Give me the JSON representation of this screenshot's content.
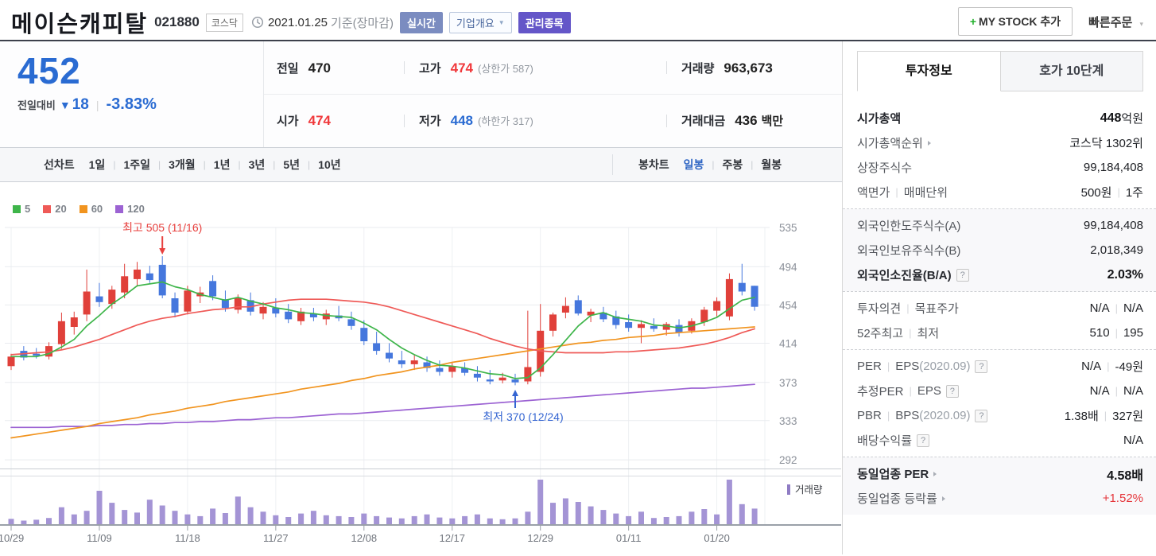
{
  "header": {
    "title": "메이슨캐피탈",
    "code": "021880",
    "market": "코스닥",
    "date": "2021.01.25",
    "date_note": "기준(장마감)",
    "badge_realtime": "실시간",
    "badge_overview": "기업개요",
    "badge_managed": "관리종목",
    "mystock_plus": "+",
    "mystock_label": "MY STOCK 추가",
    "quick_order": "빠른주문"
  },
  "price": {
    "current": "452",
    "change_label": "전일대비",
    "down_arrow": "▼",
    "change": "18",
    "percent": "-3.83%",
    "down_color": "#2a6bd2"
  },
  "quote": {
    "rows": [
      {
        "cells": [
          {
            "label": "전일",
            "value": "470",
            "vcls": "dark"
          },
          {
            "label": "고가",
            "value": "474",
            "vcls": "red",
            "extra": "(상한가 587)"
          },
          {
            "label": "거래량",
            "value": "963,673",
            "vcls": "dark"
          }
        ]
      },
      {
        "cells": [
          {
            "label": "시가",
            "value": "474",
            "vcls": "red"
          },
          {
            "label": "저가",
            "value": "448",
            "vcls": "blue",
            "extra": "(하한가 317)"
          },
          {
            "label": "거래대금",
            "value": "436",
            "vcls": "dark",
            "unit": "백만"
          }
        ]
      }
    ]
  },
  "chart_tabs": {
    "line_label": "선차트",
    "line_items": [
      "1일",
      "1주일",
      "3개월",
      "1년",
      "3년",
      "5년",
      "10년"
    ],
    "candle_label": "봉차트",
    "candle_items": [
      "일봉",
      "주봉",
      "월봉"
    ],
    "selected": "일봉"
  },
  "info_panel": {
    "tabs": [
      "투자정보",
      "호가 10단계"
    ],
    "selected_tab": "투자정보",
    "sections": [
      {
        "gray": false,
        "rows": [
          {
            "label": [
              [
                "시가총액",
                "bl"
              ]
            ],
            "value": [
              [
                "448",
                "bv"
              ],
              [
                "억원",
                ""
              ]
            ]
          },
          {
            "label": [
              [
                "시가총액순위",
                ""
              ],
              [
                "",
                "arw"
              ]
            ],
            "value": [
              [
                "코스닥 1302위",
                ""
              ]
            ]
          },
          {
            "label": [
              [
                "상장주식수",
                ""
              ]
            ],
            "value": [
              [
                "99,184,408",
                ""
              ]
            ]
          },
          {
            "label": [
              [
                "액면가",
                ""
              ],
              [
                "",
                "sep"
              ],
              [
                "매매단위",
                ""
              ]
            ],
            "value": [
              [
                "500원",
                ""
              ],
              [
                "",
                "sep"
              ],
              [
                "1주",
                ""
              ]
            ]
          }
        ]
      },
      {
        "gray": true,
        "rows": [
          {
            "label": [
              [
                "외국인한도주식수(A)",
                ""
              ]
            ],
            "value": [
              [
                "99,184,408",
                ""
              ]
            ]
          },
          {
            "label": [
              [
                "외국인보유주식수(B)",
                ""
              ]
            ],
            "value": [
              [
                "2,018,349",
                ""
              ]
            ]
          },
          {
            "label": [
              [
                "외국인소진율(B/A)",
                "bl"
              ],
              [
                "",
                "help"
              ]
            ],
            "value": [
              [
                "2.03%",
                "bv"
              ]
            ]
          }
        ]
      },
      {
        "gray": false,
        "rows": [
          {
            "label": [
              [
                "투자의견",
                ""
              ],
              [
                "",
                "sep"
              ],
              [
                "목표주가",
                ""
              ]
            ],
            "value": [
              [
                "N/A",
                ""
              ],
              [
                "",
                "sep"
              ],
              [
                "N/A",
                ""
              ]
            ]
          },
          {
            "label": [
              [
                "52주최고",
                ""
              ],
              [
                "",
                "sep"
              ],
              [
                "최저",
                ""
              ]
            ],
            "value": [
              [
                "510",
                ""
              ],
              [
                "",
                "sep"
              ],
              [
                "195",
                ""
              ]
            ]
          }
        ]
      },
      {
        "gray": false,
        "rows": [
          {
            "label": [
              [
                "PER",
                ""
              ],
              [
                "",
                "sep"
              ],
              [
                "EPS",
                ""
              ],
              [
                "(2020.09)",
                "g"
              ],
              [
                "",
                "help"
              ]
            ],
            "value": [
              [
                "N/A",
                ""
              ],
              [
                "",
                "sep"
              ],
              [
                "-49원",
                ""
              ]
            ]
          },
          {
            "label": [
              [
                "추정PER",
                ""
              ],
              [
                "",
                "sep"
              ],
              [
                "EPS",
                ""
              ],
              [
                "",
                "help"
              ]
            ],
            "value": [
              [
                "N/A",
                ""
              ],
              [
                "",
                "sep"
              ],
              [
                "N/A",
                ""
              ]
            ]
          },
          {
            "label": [
              [
                "PBR",
                ""
              ],
              [
                "",
                "sep"
              ],
              [
                "BPS",
                ""
              ],
              [
                "(2020.09)",
                "g"
              ],
              [
                "",
                "help"
              ]
            ],
            "value": [
              [
                "1.38배",
                ""
              ],
              [
                "",
                "sep"
              ],
              [
                "327원",
                ""
              ]
            ]
          },
          {
            "label": [
              [
                "배당수익률",
                ""
              ],
              [
                "",
                "help"
              ]
            ],
            "value": [
              [
                "N/A",
                ""
              ]
            ]
          }
        ]
      },
      {
        "gray": true,
        "rows": [
          {
            "label": [
              [
                "동일업종 PER",
                "bl"
              ],
              [
                "",
                "arw"
              ]
            ],
            "value": [
              [
                "4.58배",
                "bv"
              ]
            ]
          },
          {
            "label": [
              [
                "동일업종 등락률",
                ""
              ],
              [
                "",
                "arw"
              ]
            ],
            "value": [
              [
                "+1.52%",
                "red"
              ]
            ]
          }
        ]
      }
    ]
  },
  "chart_data": {
    "type": "candlestick",
    "title": "메이슨캐피탈 일봉 차트",
    "y_ticks": [
      535,
      494,
      454,
      414,
      373,
      333,
      292
    ],
    "ylim": [
      292,
      535
    ],
    "x_labels": [
      "10/29",
      "11/09",
      "11/18",
      "11/27",
      "12/08",
      "12/17",
      "12/29",
      "01/11",
      "01/20"
    ],
    "x_label_indices": [
      0,
      7,
      14,
      21,
      28,
      35,
      42,
      49,
      56
    ],
    "ma_legend": [
      {
        "period": "5",
        "color": "#3eb54a"
      },
      {
        "period": "20",
        "color": "#ef5a57"
      },
      {
        "period": "60",
        "color": "#f1941f"
      },
      {
        "period": "120",
        "color": "#9c63d3"
      }
    ],
    "volume_legend": "거래량",
    "up_color": "#e0403a",
    "down_color": "#4577dd",
    "volume_color": "#a494d5",
    "annotations": {
      "high": {
        "text": "최고 505 (11/16)",
        "index": 12,
        "value": 505,
        "color": "#e8403e"
      },
      "low": {
        "text": "최저 370 (12/24)",
        "index": 40,
        "value": 370,
        "color": "#3465d2"
      }
    },
    "candles": [
      [
        "10/29",
        390,
        403,
        386,
        400,
        12
      ],
      [
        "10/30",
        406,
        411,
        396,
        399,
        8
      ],
      [
        "11/02",
        403,
        409,
        398,
        401,
        10
      ],
      [
        "11/03",
        400,
        415,
        397,
        411,
        14
      ],
      [
        "11/04",
        413,
        446,
        408,
        437,
        38
      ],
      [
        "11/05",
        431,
        447,
        423,
        441,
        22
      ],
      [
        "11/06",
        444,
        491,
        437,
        468,
        30
      ],
      [
        "11/09",
        463,
        477,
        452,
        457,
        75
      ],
      [
        "11/10",
        455,
        474,
        450,
        470,
        48
      ],
      [
        "11/11",
        467,
        497,
        461,
        484,
        32
      ],
      [
        "11/12",
        481,
        499,
        473,
        491,
        26
      ],
      [
        "11/13",
        487,
        495,
        477,
        480,
        55
      ],
      [
        "11/16",
        496,
        505,
        461,
        464,
        42
      ],
      [
        "11/17",
        461,
        467,
        441,
        446,
        30
      ],
      [
        "11/18",
        447,
        474,
        444,
        469,
        22
      ],
      [
        "11/19",
        463,
        473,
        456,
        467,
        18
      ],
      [
        "11/20",
        479,
        485,
        459,
        463,
        35
      ],
      [
        "11/23",
        460,
        469,
        447,
        451,
        25
      ],
      [
        "11/24",
        449,
        465,
        445,
        461,
        62
      ],
      [
        "11/25",
        459,
        467,
        443,
        447,
        38
      ],
      [
        "11/26",
        445,
        457,
        439,
        452,
        28
      ],
      [
        "11/27",
        451,
        461,
        441,
        445,
        20
      ],
      [
        "11/30",
        447,
        455,
        435,
        439,
        16
      ],
      [
        "12/01",
        437,
        451,
        433,
        447,
        24
      ],
      [
        "12/02",
        445,
        451,
        437,
        441,
        30
      ],
      [
        "12/03",
        439,
        449,
        433,
        445,
        20
      ],
      [
        "12/04",
        443,
        453,
        437,
        440,
        18
      ],
      [
        "12/07",
        439,
        447,
        428,
        432,
        16
      ],
      [
        "12/08",
        430,
        438,
        412,
        416,
        24
      ],
      [
        "12/09",
        414,
        426,
        402,
        406,
        18
      ],
      [
        "12/10",
        404,
        414,
        394,
        398,
        15
      ],
      [
        "12/11",
        396,
        406,
        388,
        392,
        13
      ],
      [
        "12/14",
        392,
        402,
        386,
        396,
        18
      ],
      [
        "12/15",
        394,
        400,
        384,
        388,
        22
      ],
      [
        "12/16",
        388,
        396,
        380,
        384,
        15
      ],
      [
        "12/17",
        384,
        394,
        378,
        390,
        13
      ],
      [
        "12/18",
        388,
        394,
        380,
        383,
        18
      ],
      [
        "12/21",
        382,
        390,
        374,
        378,
        22
      ],
      [
        "12/22",
        376,
        386,
        371,
        374,
        13
      ],
      [
        "12/23",
        375,
        383,
        372,
        378,
        11
      ],
      [
        "12/24",
        376,
        382,
        370,
        373,
        13
      ],
      [
        "12/28",
        374,
        448,
        371,
        389,
        28
      ],
      [
        "12/29",
        384,
        455,
        379,
        427,
        100
      ],
      [
        "12/30",
        427,
        446,
        421,
        444,
        48
      ],
      [
        "01/04",
        446,
        462,
        440,
        453,
        58
      ],
      [
        "01/05",
        459,
        464,
        443,
        445,
        50
      ],
      [
        "01/06",
        443,
        450,
        436,
        447,
        40
      ],
      [
        "01/07",
        446,
        452,
        436,
        439,
        32
      ],
      [
        "01/08",
        442,
        448,
        429,
        433,
        24
      ],
      [
        "01/11",
        436,
        444,
        426,
        430,
        18
      ],
      [
        "01/12",
        430,
        438,
        414,
        434,
        28
      ],
      [
        "01/13",
        432,
        440,
        426,
        429,
        14
      ],
      [
        "01/14",
        428,
        436,
        422,
        434,
        16
      ],
      [
        "01/15",
        433,
        439,
        421,
        425,
        18
      ],
      [
        "01/18",
        427,
        440,
        424,
        437,
        28
      ],
      [
        "01/19",
        436,
        452,
        432,
        449,
        34
      ],
      [
        "01/20",
        448,
        462,
        442,
        458,
        22
      ],
      [
        "01/21",
        442,
        487,
        438,
        481,
        100
      ],
      [
        "01/22",
        477,
        497,
        464,
        468,
        45
      ],
      [
        "01/25",
        474,
        474,
        448,
        452,
        35
      ]
    ],
    "ma5": [
      400,
      400,
      400,
      403,
      410,
      418,
      432,
      443,
      455,
      464,
      474,
      476,
      478,
      473,
      470,
      465,
      462,
      459,
      462,
      458,
      455,
      451,
      449,
      446,
      445,
      443,
      442,
      441,
      435,
      428,
      418,
      409,
      402,
      396,
      391,
      390,
      388,
      385,
      382,
      381,
      377,
      378,
      388,
      402,
      417,
      432,
      443,
      446,
      441,
      439,
      437,
      433,
      432,
      430,
      432,
      436,
      441,
      450,
      459,
      462
    ],
    "ma20": [
      402,
      403,
      404,
      405,
      407,
      410,
      414,
      418,
      423,
      428,
      433,
      437,
      440,
      442,
      445,
      447,
      449,
      450,
      452,
      452,
      455,
      457,
      459,
      460,
      460,
      460,
      459,
      458,
      457,
      455,
      452,
      448,
      444,
      440,
      436,
      432,
      428,
      424,
      419,
      415,
      411,
      408,
      406,
      405,
      404,
      404,
      404,
      404,
      405,
      405,
      406,
      407,
      408,
      409,
      411,
      413,
      416,
      420,
      425,
      429
    ],
    "ma60": [
      315,
      317,
      319,
      321,
      323,
      325,
      327,
      330,
      332,
      334,
      336,
      339,
      341,
      343,
      346,
      348,
      350,
      353,
      355,
      357,
      359,
      361,
      363,
      366,
      368,
      370,
      372,
      375,
      377,
      380,
      382,
      384,
      387,
      389,
      391,
      394,
      396,
      398,
      400,
      402,
      404,
      406,
      408,
      410,
      412,
      414,
      415,
      417,
      418,
      420,
      421,
      422,
      424,
      425,
      426,
      427,
      428,
      429,
      430,
      431
    ],
    "ma120": [
      326,
      326,
      326,
      326,
      327,
      327,
      327,
      328,
      328,
      329,
      329,
      330,
      330,
      331,
      331,
      332,
      332,
      333,
      334,
      334,
      335,
      336,
      336,
      337,
      338,
      339,
      340,
      340,
      341,
      342,
      343,
      344,
      345,
      346,
      347,
      348,
      349,
      350,
      351,
      352,
      353,
      354,
      355,
      356,
      357,
      358,
      359,
      360,
      361,
      362,
      363,
      364,
      365,
      366,
      367,
      367,
      368,
      369,
      370,
      371
    ]
  }
}
